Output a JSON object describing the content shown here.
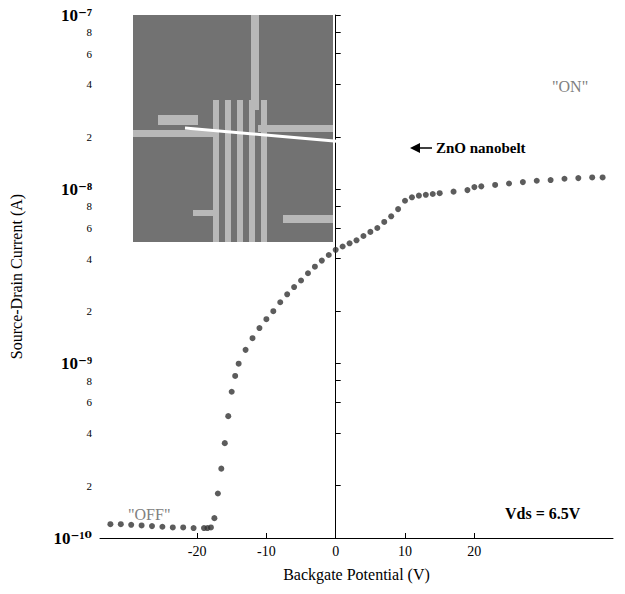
{
  "chart_data": {
    "type": "scatter",
    "x_label": "Backgate Potential (V)",
    "y_label": "Source-Drain Current (A)",
    "annotations": [
      "\"OFF\"",
      "\"ON\"",
      "Vds = 6.5V",
      "ZnO nanobelt"
    ],
    "log": "y",
    "grid": false,
    "color": "#333333",
    "marker": "circle",
    "xlim": [
      -34,
      40
    ],
    "xticks": [
      -20,
      -10,
      0,
      10,
      20
    ],
    "ylim": [
      1e-10,
      1e-07
    ],
    "yticks": [
      {
        "value": 1e-10,
        "label": "10⁻¹⁰"
      },
      {
        "value": 2e-10,
        "label": "2"
      },
      {
        "value": 4e-10,
        "label": "4"
      },
      {
        "value": 6e-10,
        "label": "6"
      },
      {
        "value": 8e-10,
        "label": "8"
      },
      {
        "value": 1e-09,
        "label": "10⁻⁹"
      },
      {
        "value": 2e-09,
        "label": "2"
      },
      {
        "value": 4e-09,
        "label": "4"
      },
      {
        "value": 6e-09,
        "label": "6"
      },
      {
        "value": 8e-09,
        "label": "8"
      },
      {
        "value": 1e-08,
        "label": "10⁻⁸"
      },
      {
        "value": 2e-08,
        "label": "2"
      },
      {
        "value": 4e-08,
        "label": "4"
      },
      {
        "value": 6e-08,
        "label": "6"
      },
      {
        "value": 8e-08,
        "label": "8"
      },
      {
        "value": 1e-07,
        "label": "10⁻⁷"
      }
    ],
    "x": [
      -32.5,
      -31,
      -29.5,
      -28,
      -26.5,
      -25,
      -23.5,
      -22,
      -20.5,
      -19,
      -18.5,
      -18,
      -17.5,
      -17,
      -16.5,
      -16,
      -15.5,
      -15,
      -14.5,
      -14,
      -13,
      -12,
      -11,
      -10,
      -9,
      -8,
      -7,
      -6,
      -5,
      -4,
      -3,
      -2,
      -1,
      0,
      1,
      2,
      3,
      4,
      5,
      6,
      7,
      8,
      9,
      10,
      11,
      12,
      13,
      14,
      15,
      17,
      19,
      20,
      21,
      23,
      25,
      27,
      29,
      31,
      33,
      35,
      37,
      38.5
    ],
    "values": [
      1.2e-10,
      1.2e-10,
      1.19e-10,
      1.18e-10,
      1.17e-10,
      1.16e-10,
      1.15e-10,
      1.15e-10,
      1.14e-10,
      1.14e-10,
      1.14e-10,
      1.15e-10,
      1.3e-10,
      1.8e-10,
      2.5e-10,
      3.5e-10,
      5e-10,
      6.9e-10,
      8.5e-10,
      1e-09,
      1.2e-09,
      1.4e-09,
      1.6e-09,
      1.8e-09,
      2e-09,
      2.25e-09,
      2.5e-09,
      2.75e-09,
      3e-09,
      3.3e-09,
      3.6e-09,
      3.9e-09,
      4.2e-09,
      4.5e-09,
      4.7e-09,
      4.9e-09,
      5.1e-09,
      5.4e-09,
      5.7e-09,
      6e-09,
      6.5e-09,
      7e-09,
      7.7e-09,
      8.6e-09,
      9e-09,
      9.2e-09,
      9.3e-09,
      9.4e-09,
      9.5e-09,
      9.7e-09,
      9.9e-09,
      1.03e-08,
      1.04e-08,
      1.06e-08,
      1.08e-08,
      1.1e-08,
      1.12e-08,
      1.13e-08,
      1.15e-08,
      1.16e-08,
      1.17e-08,
      1.17e-08
    ]
  }
}
